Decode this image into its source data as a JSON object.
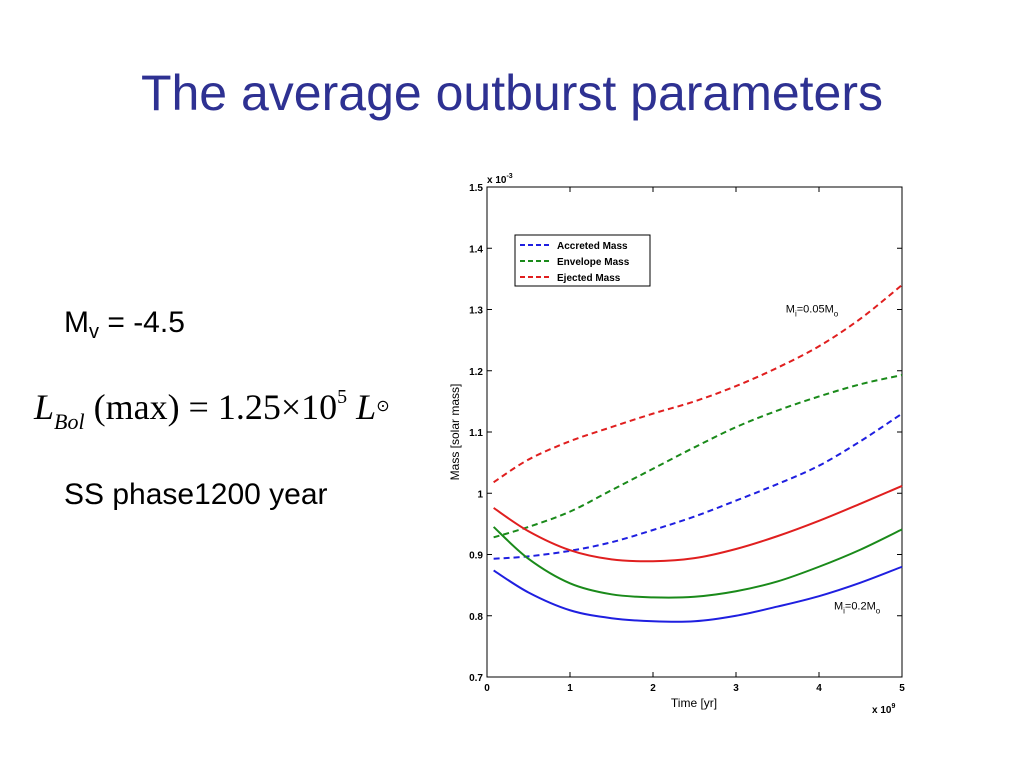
{
  "slide": {
    "title": "The average outburst parameters",
    "mv_label": "M",
    "mv_sub": "v",
    "mv_value": " = -4.5",
    "formula": {
      "L": "L",
      "bol_sub": "Bol",
      "body": "(max) = 1.25×10",
      "exponent": "5",
      "L2": "L",
      "sun_glyph": "⊙"
    },
    "ss_phase": "SS phase1200 year"
  },
  "chart_data": {
    "type": "line",
    "xlabel": "Time [yr]",
    "ylabel": "Mass [solar mass]",
    "x_multiplier": "x 10",
    "x_multiplier_exp": "9",
    "y_multiplier": "x 10",
    "y_multiplier_exp": "-3",
    "xlim": [
      0,
      5
    ],
    "ylim": [
      0.7,
      1.5
    ],
    "xticks": [
      "0",
      "1",
      "2",
      "3",
      "4",
      "5"
    ],
    "yticks": [
      "0.7",
      "0.8",
      "0.9",
      "1",
      "1.1",
      "1.2",
      "1.3",
      "1.4",
      "1.5"
    ],
    "legend_position": "top-left",
    "legend": [
      {
        "name": "Accreted Mass",
        "color": "#1f1fe0",
        "dash": true
      },
      {
        "name": "Envelope Mass",
        "color": "#1a8a1a",
        "dash": true
      },
      {
        "name": "Ejected Mass",
        "color": "#e01f1f",
        "dash": true
      }
    ],
    "annotations": [
      {
        "text": "M",
        "sub": "i",
        "rest": "=0.05M",
        "sub2": "o",
        "x": 3.6,
        "y": 1.295
      },
      {
        "text": "M",
        "sub": "i",
        "rest": "=0.2M",
        "sub2": "o",
        "x": 4.18,
        "y": 0.81
      }
    ],
    "series": [
      {
        "name": "Accreted Mass",
        "color": "#1f1fe0",
        "dashed": true,
        "x": [
          0.08,
          0.5,
          1,
          1.5,
          2,
          2.5,
          3,
          3.5,
          4,
          4.5,
          5
        ],
        "y": [
          0.893,
          0.897,
          0.906,
          0.92,
          0.94,
          0.962,
          0.988,
          1.015,
          1.045,
          1.085,
          1.13
        ]
      },
      {
        "name": "Envelope Mass",
        "color": "#1a8a1a",
        "dashed": true,
        "x": [
          0.08,
          0.5,
          1,
          1.5,
          2,
          2.5,
          3,
          3.5,
          4,
          4.5,
          5
        ],
        "y": [
          0.928,
          0.945,
          0.97,
          1.005,
          1.04,
          1.075,
          1.108,
          1.135,
          1.158,
          1.178,
          1.193
        ]
      },
      {
        "name": "Ejected Mass",
        "color": "#e01f1f",
        "dashed": true,
        "x": [
          0.08,
          0.5,
          1,
          1.5,
          2,
          2.5,
          3,
          3.5,
          4,
          4.5,
          5
        ],
        "y": [
          1.018,
          1.055,
          1.085,
          1.108,
          1.13,
          1.15,
          1.175,
          1.205,
          1.24,
          1.285,
          1.34
        ]
      },
      {
        "name": "",
        "color": "#e01f1f",
        "dashed": false,
        "x": [
          0.08,
          0.5,
          1,
          1.5,
          2,
          2.5,
          3,
          3.5,
          4,
          4.5,
          5
        ],
        "y": [
          0.976,
          0.938,
          0.907,
          0.892,
          0.889,
          0.894,
          0.909,
          0.93,
          0.955,
          0.983,
          1.012
        ]
      },
      {
        "name": "",
        "color": "#1a8a1a",
        "dashed": false,
        "x": [
          0.08,
          0.5,
          1,
          1.5,
          2,
          2.5,
          3,
          3.5,
          4,
          4.5,
          5
        ],
        "y": [
          0.945,
          0.893,
          0.853,
          0.835,
          0.83,
          0.831,
          0.84,
          0.856,
          0.88,
          0.908,
          0.941
        ]
      },
      {
        "name": "",
        "color": "#1f1fe0",
        "dashed": false,
        "x": [
          0.08,
          0.5,
          1,
          1.5,
          2,
          2.5,
          3,
          3.5,
          4,
          4.5,
          5
        ],
        "y": [
          0.874,
          0.838,
          0.809,
          0.796,
          0.791,
          0.791,
          0.8,
          0.815,
          0.832,
          0.854,
          0.88
        ]
      }
    ]
  }
}
